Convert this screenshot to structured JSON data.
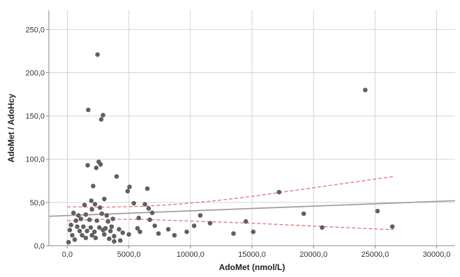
{
  "chart_data": {
    "type": "scatter",
    "title": "",
    "xlabel": "AdoMet (nmol/L)",
    "ylabel": "AdoMet / AdoHcy",
    "xlim": [
      -1500,
      31500
    ],
    "ylim": [
      0,
      272
    ],
    "x_ticks": [
      0,
      5000,
      10000,
      15000,
      20000,
      25000,
      30000
    ],
    "x_tick_labels": [
      "0,0",
      "5000,0",
      "10000,0",
      "15000,0",
      "20000,0",
      "25000,0",
      "30000,0"
    ],
    "y_ticks": [
      0,
      50,
      100,
      150,
      200,
      250
    ],
    "y_tick_labels": [
      "0,0",
      "50,0",
      "100,0",
      "150,0",
      "200,0",
      "250,0"
    ],
    "grid": true,
    "colors": {
      "points": "#606060",
      "fit_line": "#a0a0a0",
      "ci_band": "#e87272",
      "grid": "#d4d4d4",
      "axis": "#888888"
    },
    "points": [
      [
        2450,
        221
      ],
      [
        1700,
        157
      ],
      [
        2900,
        151
      ],
      [
        2750,
        146
      ],
      [
        24200,
        180
      ],
      [
        2550,
        97
      ],
      [
        2700,
        94
      ],
      [
        1650,
        93
      ],
      [
        2350,
        90
      ],
      [
        4000,
        80
      ],
      [
        2100,
        69
      ],
      [
        5050,
        68
      ],
      [
        4900,
        63
      ],
      [
        6500,
        66
      ],
      [
        17200,
        62
      ],
      [
        3000,
        54
      ],
      [
        1950,
        52
      ],
      [
        2250,
        48
      ],
      [
        1400,
        47
      ],
      [
        2650,
        44
      ],
      [
        5400,
        49
      ],
      [
        6300,
        48
      ],
      [
        6600,
        43
      ],
      [
        6900,
        38
      ],
      [
        25200,
        40
      ],
      [
        500,
        38
      ],
      [
        900,
        35
      ],
      [
        1500,
        36
      ],
      [
        2000,
        42
      ],
      [
        2800,
        37
      ],
      [
        3200,
        35
      ],
      [
        10800,
        35
      ],
      [
        19200,
        37
      ],
      [
        3700,
        31
      ],
      [
        5800,
        32
      ],
      [
        6700,
        30
      ],
      [
        700,
        29
      ],
      [
        1100,
        31
      ],
      [
        1800,
        30
      ],
      [
        2400,
        29
      ],
      [
        3300,
        28
      ],
      [
        11600,
        26
      ],
      [
        14500,
        28
      ],
      [
        26400,
        22
      ],
      [
        300,
        24
      ],
      [
        800,
        22
      ],
      [
        1300,
        22
      ],
      [
        1900,
        21
      ],
      [
        2600,
        21
      ],
      [
        3100,
        20
      ],
      [
        3600,
        22
      ],
      [
        4200,
        19
      ],
      [
        5700,
        20
      ],
      [
        7100,
        23
      ],
      [
        8200,
        19
      ],
      [
        10300,
        23
      ],
      [
        20700,
        21
      ],
      [
        200,
        18
      ],
      [
        1000,
        17
      ],
      [
        1600,
        17
      ],
      [
        2200,
        16
      ],
      [
        2900,
        18
      ],
      [
        3500,
        17
      ],
      [
        4500,
        15
      ],
      [
        5900,
        16
      ],
      [
        7400,
        14
      ],
      [
        9700,
        16
      ],
      [
        13500,
        14
      ],
      [
        15100,
        16
      ],
      [
        400,
        12
      ],
      [
        1200,
        12
      ],
      [
        2000,
        12
      ],
      [
        3000,
        13
      ],
      [
        3800,
        11
      ],
      [
        5000,
        13
      ],
      [
        8700,
        12
      ],
      [
        600,
        7
      ],
      [
        1500,
        9
      ],
      [
        2300,
        9
      ],
      [
        3400,
        8
      ],
      [
        4300,
        6
      ],
      [
        100,
        4
      ],
      [
        3800,
        5
      ]
    ],
    "fit_line": {
      "name": "",
      "points": [
        [
          -1500,
          34
        ],
        [
          31500,
          52
        ]
      ]
    },
    "ci_upper": {
      "points": [
        [
          0,
          45
        ],
        [
          3000,
          44.5
        ],
        [
          6000,
          45.5
        ],
        [
          9000,
          48
        ],
        [
          12000,
          52
        ],
        [
          15000,
          57
        ],
        [
          18000,
          63
        ],
        [
          21000,
          69
        ],
        [
          24000,
          75
        ],
        [
          26500,
          80
        ]
      ]
    },
    "ci_lower": {
      "points": [
        [
          0,
          29
        ],
        [
          3000,
          30.5
        ],
        [
          6000,
          30.5
        ],
        [
          9000,
          29
        ],
        [
          12000,
          27.5
        ],
        [
          15000,
          26
        ],
        [
          18000,
          24
        ],
        [
          21000,
          22
        ],
        [
          24000,
          20
        ],
        [
          26500,
          18.5
        ]
      ]
    }
  }
}
